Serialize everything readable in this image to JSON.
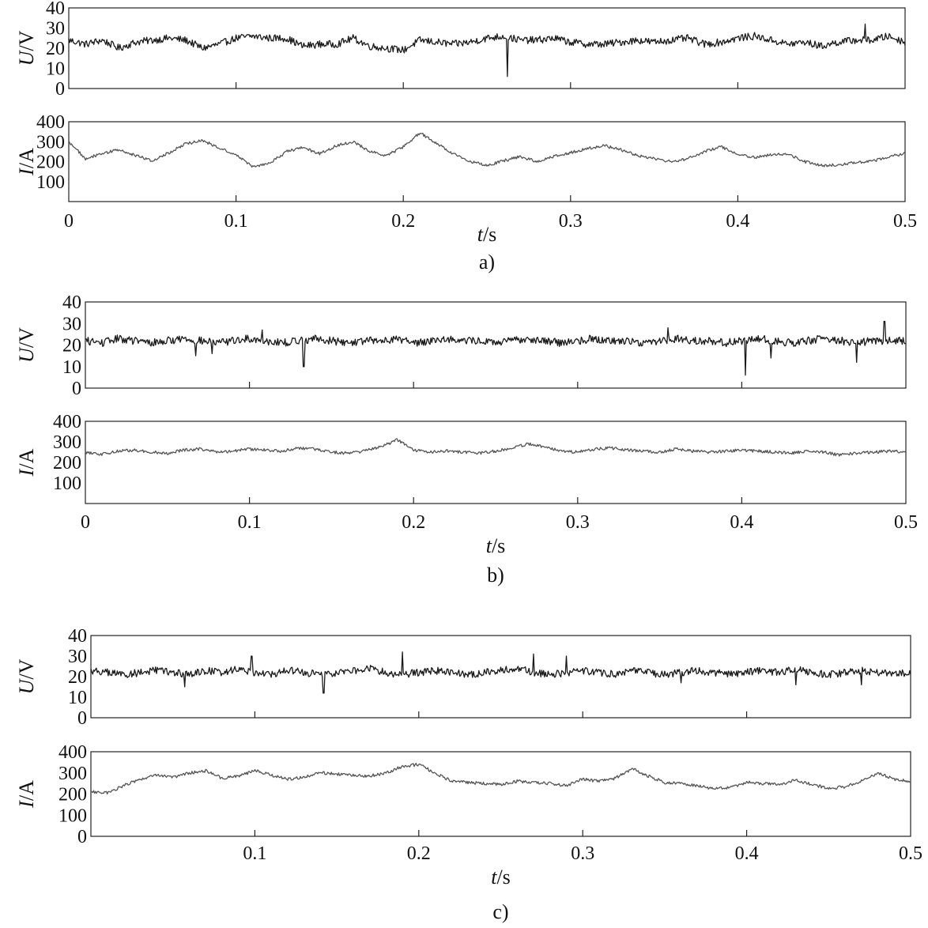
{
  "chart_data": [
    {
      "type": "line",
      "caption": "a)",
      "xlabel": "t/s",
      "xlim": [
        0,
        0.5
      ],
      "x_ticks": [
        0,
        0.1,
        0.2,
        0.3,
        0.4,
        0.5
      ],
      "x_tick_labels": [
        "0",
        "0.1",
        "0.2",
        "0.3",
        "0.4",
        "0.5"
      ],
      "panels": [
        {
          "ylabel": "U/V",
          "ylim": [
            0,
            40
          ],
          "y_ticks": [
            0,
            10,
            20,
            30,
            40
          ],
          "y_tick_labels": [
            "0",
            "10",
            "20",
            "30",
            "40"
          ],
          "color": "#1a1a1a",
          "step": 0.01,
          "values": [
            24,
            22,
            24,
            20,
            23,
            24,
            25,
            24,
            20,
            22,
            25,
            26,
            25,
            25,
            21,
            22,
            22,
            25,
            21,
            20,
            19,
            24,
            23,
            22,
            23,
            25,
            26,
            24,
            24,
            25,
            23,
            22,
            22,
            23,
            24,
            23,
            24,
            25,
            22,
            23,
            25,
            26,
            24,
            22,
            23,
            21,
            23,
            24,
            24,
            26,
            23,
            22,
            26,
            24,
            24,
            22,
            23,
            25,
            25,
            24,
            24,
            24,
            23,
            22,
            22,
            23,
            24,
            25,
            24,
            20,
            20,
            23,
            24,
            24,
            25,
            26,
            24,
            22,
            23,
            26,
            24,
            24,
            21,
            22,
            25,
            21,
            22,
            21,
            23,
            26,
            28,
            25,
            24,
            24,
            26,
            24,
            24,
            25,
            26,
            20,
            19
          ],
          "spikes": [
            {
              "x": 0.262,
              "y": 6
            },
            {
              "x": 0.476,
              "y": 32
            }
          ]
        },
        {
          "ylabel": "I/A",
          "ylim": [
            0,
            400
          ],
          "y_ticks": [
            100,
            200,
            300,
            400
          ],
          "y_tick_labels": [
            "100",
            "200",
            "300",
            "400"
          ],
          "color": "#555555",
          "step": 0.01,
          "values": [
            300,
            215,
            240,
            260,
            230,
            205,
            245,
            290,
            305,
            270,
            235,
            175,
            190,
            250,
            270,
            240,
            280,
            300,
            250,
            230,
            275,
            345,
            290,
            240,
            200,
            180,
            205,
            225,
            200,
            225,
            245,
            265,
            280,
            260,
            230,
            215,
            200,
            215,
            250,
            275,
            240,
            220,
            235,
            240,
            200,
            180,
            185,
            195,
            200,
            225,
            240,
            270,
            250,
            260,
            270,
            290,
            270,
            260,
            255,
            270,
            250,
            245,
            260,
            265,
            290,
            270,
            250,
            240,
            245,
            260,
            280,
            300,
            240,
            235,
            260,
            280,
            300,
            290,
            270,
            270,
            220,
            215,
            245,
            250,
            240,
            250,
            280,
            300,
            270,
            250,
            240,
            230,
            240,
            250,
            290,
            250,
            220,
            185,
            200,
            205,
            245
          ]
        }
      ]
    },
    {
      "type": "line",
      "caption": "b)",
      "xlabel": "t/s",
      "xlim": [
        0,
        0.5
      ],
      "x_ticks": [
        0,
        0.1,
        0.2,
        0.3,
        0.4,
        0.5
      ],
      "x_tick_labels": [
        "0",
        "0.1",
        "0.2",
        "0.3",
        "0.4",
        "0.5"
      ],
      "panels": [
        {
          "ylabel": "U/V",
          "ylim": [
            0,
            40
          ],
          "y_ticks": [
            0,
            10,
            20,
            30,
            40
          ],
          "y_tick_labels": [
            "0",
            "10",
            "20",
            "30",
            "40"
          ],
          "color": "#1a1a1a",
          "step": 0.01,
          "values": [
            22,
            21,
            23,
            22,
            21,
            22,
            23,
            22,
            21,
            22,
            23,
            22,
            21,
            22,
            23,
            22,
            21,
            22,
            22,
            23,
            21,
            22,
            23,
            22,
            22,
            21,
            22,
            23,
            22,
            21,
            22,
            23,
            22,
            22,
            21,
            22,
            23,
            22,
            22,
            21,
            22,
            23,
            22,
            21,
            22,
            23,
            22,
            21,
            22,
            22,
            22,
            21,
            23,
            22,
            21,
            22,
            22,
            23,
            22,
            21,
            22,
            22,
            23,
            22,
            22,
            21,
            22,
            23,
            22,
            22,
            21,
            22,
            23,
            22,
            21,
            22,
            22,
            23,
            22,
            21,
            22,
            22,
            23,
            22,
            21,
            22,
            22,
            23,
            22,
            21,
            22,
            23,
            22,
            21,
            22,
            22,
            23,
            22,
            21,
            22,
            22
          ],
          "spikes": [
            {
              "x": 0.067,
              "y": 15
            },
            {
              "x": 0.077,
              "y": 16
            },
            {
              "x": 0.108,
              "y": 27
            },
            {
              "x": 0.133,
              "y": 10
            },
            {
              "x": 0.355,
              "y": 28
            },
            {
              "x": 0.402,
              "y": 6
            },
            {
              "x": 0.418,
              "y": 14
            },
            {
              "x": 0.47,
              "y": 12
            },
            {
              "x": 0.487,
              "y": 31
            }
          ]
        },
        {
          "ylabel": "I/A",
          "ylim": [
            0,
            400
          ],
          "y_ticks": [
            100,
            200,
            300,
            400
          ],
          "y_tick_labels": [
            "100",
            "200",
            "300",
            "400"
          ],
          "color": "#555555",
          "step": 0.01,
          "values": [
            250,
            240,
            255,
            260,
            250,
            245,
            260,
            265,
            250,
            255,
            265,
            260,
            255,
            270,
            265,
            250,
            245,
            255,
            275,
            310,
            260,
            250,
            255,
            250,
            245,
            255,
            270,
            290,
            275,
            255,
            250,
            265,
            270,
            260,
            255,
            250,
            265,
            255,
            250,
            255,
            260,
            255,
            250,
            245,
            255,
            250,
            235,
            245,
            250,
            255,
            250,
            240,
            245,
            255,
            250,
            245,
            255,
            265,
            260,
            255,
            260,
            270,
            265,
            255,
            260,
            265,
            270,
            280,
            275,
            270,
            265,
            275,
            270,
            260,
            265,
            270,
            265,
            260,
            270,
            275,
            260,
            255,
            260,
            265,
            270,
            280,
            265,
            270,
            260,
            255,
            250,
            245,
            250,
            245,
            235,
            245,
            250,
            255,
            230,
            240,
            250
          ]
        }
      ]
    },
    {
      "type": "line",
      "caption": "c)",
      "xlabel": "t/s",
      "xlim": [
        0,
        0.5
      ],
      "x_ticks": [
        0.1,
        0.2,
        0.3,
        0.4,
        0.5
      ],
      "x_tick_labels": [
        "0.1",
        "0.2",
        "0.3",
        "0.4",
        "0.5"
      ],
      "panels": [
        {
          "ylabel": "U/V",
          "ylim": [
            0,
            40
          ],
          "y_ticks": [
            0,
            10,
            20,
            30,
            40
          ],
          "y_tick_labels": [
            "0",
            "10",
            "20",
            "30",
            "40"
          ],
          "color": "#1a1a1a",
          "step": 0.01,
          "values": [
            23,
            22,
            21,
            22,
            23,
            22,
            21,
            23,
            22,
            24,
            22,
            21,
            23,
            22,
            21,
            22,
            23,
            24,
            22,
            21,
            22,
            23,
            22,
            21,
            22,
            23,
            24,
            22,
            21,
            22,
            23,
            22,
            21,
            23,
            22,
            21,
            22,
            23,
            22,
            21,
            22,
            23,
            22,
            24,
            22,
            21,
            22,
            23,
            22,
            21,
            22,
            23,
            22,
            21,
            22,
            23,
            22,
            21,
            22,
            23,
            22,
            21,
            22,
            23,
            22,
            21,
            22,
            23,
            22,
            21,
            22,
            23,
            22,
            21,
            22,
            23,
            22,
            21,
            22,
            23,
            22,
            21,
            22,
            23,
            22,
            21,
            22,
            23,
            22,
            21,
            22,
            23,
            22,
            24,
            22,
            21,
            22,
            23,
            24,
            22,
            23
          ],
          "spikes": [
            {
              "x": 0.057,
              "y": 15
            },
            {
              "x": 0.098,
              "y": 30
            },
            {
              "x": 0.142,
              "y": 12
            },
            {
              "x": 0.19,
              "y": 32
            },
            {
              "x": 0.27,
              "y": 31
            },
            {
              "x": 0.29,
              "y": 30
            },
            {
              "x": 0.36,
              "y": 17
            },
            {
              "x": 0.43,
              "y": 16
            },
            {
              "x": 0.47,
              "y": 16
            }
          ]
        },
        {
          "ylabel": "I/A",
          "ylim": [
            0,
            400
          ],
          "y_ticks": [
            0,
            100,
            200,
            300,
            400
          ],
          "y_tick_labels": [
            "0",
            "100",
            "200",
            "300",
            "400"
          ],
          "color": "#555555",
          "step": 0.01,
          "values": [
            210,
            205,
            240,
            270,
            290,
            280,
            300,
            310,
            275,
            285,
            310,
            290,
            270,
            280,
            300,
            295,
            290,
            285,
            300,
            330,
            340,
            300,
            260,
            255,
            250,
            245,
            260,
            255,
            250,
            240,
            270,
            260,
            275,
            320,
            285,
            255,
            250,
            240,
            225,
            230,
            255,
            250,
            245,
            265,
            245,
            225,
            235,
            260,
            300,
            270,
            260,
            255,
            245,
            270,
            290,
            265,
            255,
            250,
            240,
            260,
            265,
            245,
            255,
            260,
            270,
            255,
            250,
            265,
            280,
            265,
            250,
            245,
            235,
            245,
            255,
            265,
            270,
            280,
            285,
            270,
            265,
            260,
            255,
            250,
            245,
            240,
            220,
            230,
            250,
            260,
            275,
            285,
            300,
            310,
            295,
            280,
            275,
            300,
            340,
            270,
            230
          ]
        }
      ]
    }
  ]
}
